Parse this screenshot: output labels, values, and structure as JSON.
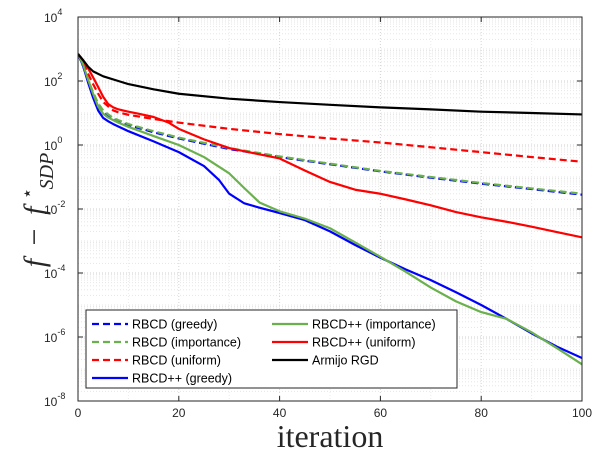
{
  "chart_data": {
    "type": "line",
    "title": "",
    "xlabel": "iteration",
    "ylabel": "f − f*_SDP",
    "ylabel_parts": {
      "f1": "f",
      "minus": "−",
      "f2": "f",
      "sup": "⋆",
      "sub": "SDP"
    },
    "xlim": [
      0,
      100
    ],
    "ylim": [
      1e-08,
      10000.0
    ],
    "yscale": "log",
    "grid": true,
    "legend_position": "bottom-left",
    "x_ticks": [
      {
        "value": 0,
        "label": "0"
      },
      {
        "value": 20,
        "label": "20"
      },
      {
        "value": 40,
        "label": "40"
      },
      {
        "value": 60,
        "label": "60"
      },
      {
        "value": 80,
        "label": "80"
      },
      {
        "value": 100,
        "label": "100"
      }
    ],
    "y_ticks": [
      {
        "value": 1e-08,
        "base": "10",
        "exp": "-8"
      },
      {
        "value": 1e-06,
        "base": "10",
        "exp": "-6"
      },
      {
        "value": 0.0001,
        "base": "10",
        "exp": "-4"
      },
      {
        "value": 0.01,
        "base": "10",
        "exp": "-2"
      },
      {
        "value": 1,
        "base": "10",
        "exp": "0"
      },
      {
        "value": 100,
        "base": "10",
        "exp": "2"
      },
      {
        "value": 10000,
        "base": "10",
        "exp": "4"
      }
    ],
    "series": [
      {
        "name": "RBCD (greedy)",
        "color": "#0000ff",
        "style": "dashed",
        "x": [
          0,
          1,
          2,
          3,
          4,
          5,
          6,
          7,
          8,
          10,
          15,
          20,
          30,
          40,
          50,
          60,
          70,
          80,
          90,
          100
        ],
        "y": [
          700,
          300,
          100,
          40,
          18,
          11,
          8,
          6.5,
          5.5,
          4.2,
          2.5,
          1.6,
          0.75,
          0.42,
          0.25,
          0.15,
          0.095,
          0.062,
          0.042,
          0.028
        ]
      },
      {
        "name": "RBCD (importance)",
        "color": "#6ab04c",
        "style": "dashed",
        "x": [
          0,
          1,
          2,
          3,
          4,
          5,
          6,
          7,
          8,
          10,
          15,
          20,
          30,
          40,
          50,
          60,
          70,
          80,
          90,
          100
        ],
        "y": [
          700,
          320,
          110,
          45,
          20,
          12,
          9,
          7,
          6,
          4.5,
          2.7,
          1.7,
          0.8,
          0.44,
          0.26,
          0.155,
          0.1,
          0.065,
          0.044,
          0.03
        ]
      },
      {
        "name": "RBCD (uniform)",
        "color": "#ff0000",
        "style": "dashed",
        "x": [
          0,
          1,
          2,
          3,
          4,
          5,
          6,
          7,
          8,
          10,
          15,
          20,
          30,
          40,
          50,
          60,
          70,
          80,
          90,
          100
        ],
        "y": [
          700,
          380,
          170,
          80,
          40,
          22,
          16,
          12,
          10.5,
          8.8,
          6.5,
          5,
          3.2,
          2.2,
          1.6,
          1.2,
          0.85,
          0.6,
          0.42,
          0.3
        ]
      },
      {
        "name": "RBCD++ (greedy)",
        "color": "#0000ff",
        "style": "solid",
        "x": [
          0,
          1,
          2,
          3,
          4,
          5,
          6,
          7,
          8,
          10,
          15,
          20,
          25,
          28,
          30,
          33,
          36,
          40,
          45,
          50,
          55,
          60,
          65,
          70,
          75,
          80,
          85,
          90,
          95,
          100
        ],
        "y": [
          700,
          300,
          90,
          30,
          12,
          7,
          5.5,
          4.5,
          3.8,
          2.7,
          1.3,
          0.6,
          0.22,
          0.08,
          0.03,
          0.015,
          0.011,
          0.0075,
          0.0045,
          0.002,
          0.00075,
          0.0003,
          0.00013,
          6e-05,
          2.5e-05,
          1e-05,
          3.7e-06,
          1.3e-06,
          5e-07,
          2.2e-07
        ]
      },
      {
        "name": "RBCD++ (importance)",
        "color": "#6ab04c",
        "style": "solid",
        "x": [
          0,
          1,
          2,
          3,
          4,
          5,
          6,
          7,
          8,
          10,
          15,
          20,
          25,
          30,
          33,
          36,
          40,
          45,
          50,
          55,
          60,
          65,
          70,
          75,
          80,
          85,
          90,
          95,
          100
        ],
        "y": [
          700,
          330,
          110,
          40,
          16,
          9.5,
          7.2,
          6,
          5,
          3.7,
          1.9,
          1.0,
          0.42,
          0.13,
          0.045,
          0.016,
          0.0085,
          0.005,
          0.0025,
          0.0009,
          0.00032,
          0.00011,
          3.5e-05,
          1.3e-05,
          6e-06,
          3.7e-06,
          1.4e-06,
          4.5e-07,
          1.4e-07
        ]
      },
      {
        "name": "RBCD++ (uniform)",
        "color": "#ff0000",
        "style": "solid",
        "x": [
          0,
          1,
          2,
          3,
          4,
          5,
          6,
          7,
          8,
          10,
          12,
          15,
          18,
          20,
          25,
          30,
          35,
          40,
          45,
          50,
          55,
          60,
          65,
          70,
          75,
          80,
          85,
          90,
          95,
          100
        ],
        "y": [
          700,
          450,
          250,
          130,
          65,
          32,
          19,
          15,
          13,
          11,
          9.5,
          7.5,
          5,
          3.2,
          1.5,
          0.8,
          0.55,
          0.38,
          0.16,
          0.07,
          0.04,
          0.03,
          0.02,
          0.013,
          0.008,
          0.0055,
          0.004,
          0.0028,
          0.0019,
          0.0013
        ]
      },
      {
        "name": "Armijo RGD",
        "color": "#000000",
        "style": "solid",
        "x": [
          0,
          1,
          2,
          3,
          5,
          8,
          10,
          15,
          20,
          30,
          40,
          50,
          60,
          70,
          80,
          90,
          100
        ],
        "y": [
          700,
          450,
          280,
          200,
          140,
          100,
          80,
          55,
          40,
          28,
          22,
          18,
          15,
          13,
          11,
          10,
          9
        ]
      }
    ],
    "legend_columns": [
      [
        "RBCD (greedy)",
        "RBCD (importance)",
        "RBCD (uniform)",
        "RBCD++ (greedy)"
      ],
      [
        "RBCD++ (importance)",
        "RBCD++ (uniform)",
        "Armijo RGD"
      ]
    ]
  }
}
